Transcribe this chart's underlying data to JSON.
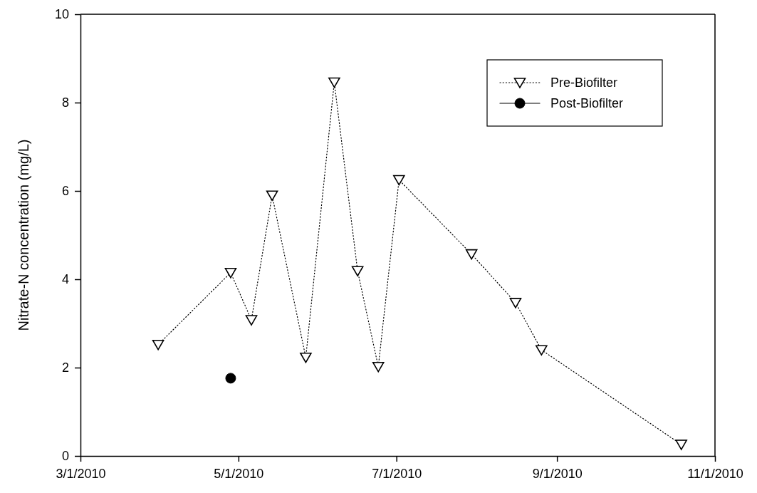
{
  "chart_data": {
    "type": "line",
    "ylabel": "Nitrate-N concentration (mg/L)",
    "xlim": [
      "2010-03-01",
      "2010-11-01"
    ],
    "xticks": [
      {
        "value": "2010-03-01",
        "label": "3/1/2010"
      },
      {
        "value": "2010-05-01",
        "label": "5/1/2010"
      },
      {
        "value": "2010-07-01",
        "label": "7/1/2010"
      },
      {
        "value": "2010-09-01",
        "label": "9/1/2010"
      },
      {
        "value": "2010-11-01",
        "label": "11/1/2010"
      }
    ],
    "ylim": [
      0,
      10
    ],
    "yticks": [
      0,
      2,
      4,
      6,
      8,
      10
    ],
    "legend": "top right",
    "series": [
      {
        "name": "Pre-Biofilter",
        "color": "#000000",
        "marker": "triangle",
        "line_style": "dotted",
        "x": [
          "2010-03-31",
          "2010-04-28",
          "2010-05-06",
          "2010-05-14",
          "2010-05-27",
          "2010-06-07",
          "2010-06-16",
          "2010-06-24",
          "2010-07-02",
          "2010-07-30",
          "2010-08-16",
          "2010-08-26",
          "2010-10-19"
        ],
        "values": [
          2.52,
          4.15,
          3.08,
          5.9,
          2.23,
          8.46,
          4.19,
          2.02,
          6.25,
          4.57,
          3.47,
          2.4,
          0.26
        ]
      },
      {
        "name": "Post-Biofilter",
        "color": "#000000",
        "marker": "circle",
        "line_style": "solid",
        "x": [
          "2010-04-28"
        ],
        "values": [
          1.76
        ]
      }
    ]
  }
}
